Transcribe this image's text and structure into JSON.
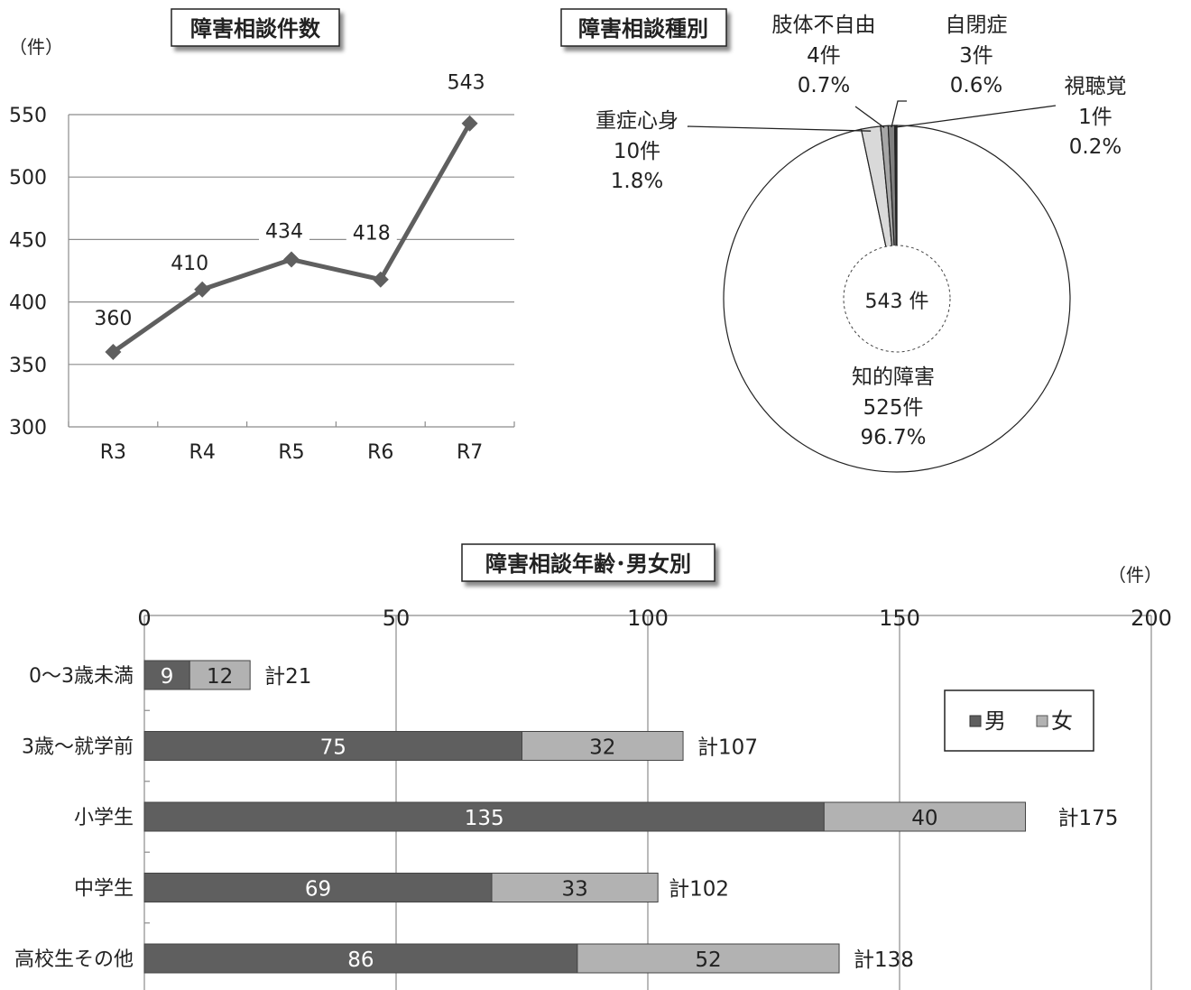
{
  "chart_data": [
    {
      "type": "line",
      "title": "障害相談件数",
      "unit": "（件）",
      "categories": [
        "R3",
        "R4",
        "R5",
        "R6",
        "R7"
      ],
      "series": [
        {
          "values": [
            360,
            410,
            434,
            418,
            543
          ]
        }
      ],
      "ylim": [
        300,
        550
      ],
      "yticks": [
        300,
        350,
        400,
        450,
        500,
        550
      ],
      "grid": true,
      "colors": {
        "line": "#5f5f5f"
      }
    },
    {
      "type": "pie",
      "title": "障害相談種別",
      "center_label": "543 件",
      "slices": [
        {
          "name": "知的障害",
          "count": "525件",
          "value": 96.7,
          "pct": "96.7%",
          "color": "#ffffff"
        },
        {
          "name": "重症心身",
          "count": "10件",
          "value": 1.8,
          "pct": "1.8%",
          "color": "#d9d9d9"
        },
        {
          "name": "肢体不自由",
          "count": "4件",
          "value": 0.7,
          "pct": "0.7%",
          "color": "#a6a6a6"
        },
        {
          "name": "自閉症",
          "count": "3件",
          "value": 0.6,
          "pct": "0.6%",
          "color": "#7f7f7f"
        },
        {
          "name": "視聴覚",
          "count": "1件",
          "value": 0.2,
          "pct": "0.2%",
          "color": "#262626"
        }
      ]
    },
    {
      "type": "bar",
      "orientation": "horizontal",
      "stacked": true,
      "title": "障害相談年齢･男女別",
      "unit": "（件）",
      "categories": [
        "0～3歳未満",
        "3歳～就学前",
        "小学生",
        "中学生",
        "高校生その他"
      ],
      "series": [
        {
          "name": "男",
          "values": [
            9,
            75,
            135,
            69,
            86
          ],
          "color": "#5f5f5f"
        },
        {
          "name": "女",
          "values": [
            12,
            32,
            40,
            33,
            52
          ],
          "color": "#b2b2b2"
        }
      ],
      "totals": [
        "計21",
        "計107",
        "計175",
        "計102",
        "計138"
      ],
      "xlim": [
        0,
        200
      ],
      "xticks": [
        0,
        50,
        100,
        150,
        200
      ],
      "grid": true,
      "legend": "top-right"
    }
  ]
}
